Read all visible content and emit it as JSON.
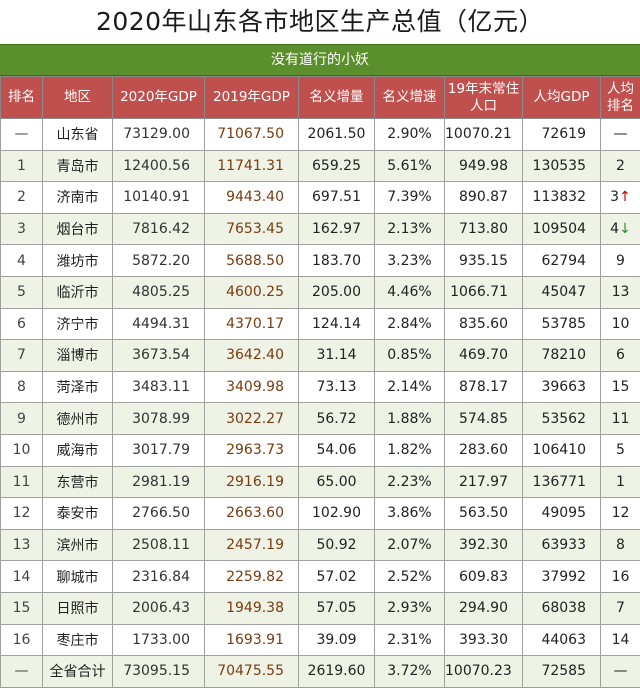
{
  "title": "2020年山东各市地区生产总值（亿元）",
  "subtitle": "没有道行的小妖",
  "headers": [
    "排名",
    "地区",
    "2020年GDP",
    "2019年GDP",
    "名义增量",
    "名义增速",
    "19年末常住人口",
    "人均GDP",
    "人均排名"
  ],
  "rows": [
    {
      "rank": "—",
      "region": "山东省",
      "gdp2020": "73129.00",
      "gdp2019": "71067.50",
      "inc": "2061.50",
      "rate": "2.90%",
      "pop": "10070.21",
      "per": "72619",
      "perRank": "—",
      "arrow": ""
    },
    {
      "rank": "1",
      "region": "青岛市",
      "gdp2020": "12400.56",
      "gdp2019": "11741.31",
      "inc": "659.25",
      "rate": "5.61%",
      "pop": "949.98",
      "per": "130535",
      "perRank": "2",
      "arrow": ""
    },
    {
      "rank": "2",
      "region": "济南市",
      "gdp2020": "10140.91",
      "gdp2019": "9443.40",
      "inc": "697.51",
      "rate": "7.39%",
      "pop": "890.87",
      "per": "113832",
      "perRank": "3",
      "arrow": "↑"
    },
    {
      "rank": "3",
      "region": "烟台市",
      "gdp2020": "7816.42",
      "gdp2019": "7653.45",
      "inc": "162.97",
      "rate": "2.13%",
      "pop": "713.80",
      "per": "109504",
      "perRank": "4",
      "arrow": "↓"
    },
    {
      "rank": "4",
      "region": "潍坊市",
      "gdp2020": "5872.20",
      "gdp2019": "5688.50",
      "inc": "183.70",
      "rate": "3.23%",
      "pop": "935.15",
      "per": "62794",
      "perRank": "9",
      "arrow": ""
    },
    {
      "rank": "5",
      "region": "临沂市",
      "gdp2020": "4805.25",
      "gdp2019": "4600.25",
      "inc": "205.00",
      "rate": "4.46%",
      "pop": "1066.71",
      "per": "45047",
      "perRank": "13",
      "arrow": ""
    },
    {
      "rank": "6",
      "region": "济宁市",
      "gdp2020": "4494.31",
      "gdp2019": "4370.17",
      "inc": "124.14",
      "rate": "2.84%",
      "pop": "835.60",
      "per": "53785",
      "perRank": "10",
      "arrow": ""
    },
    {
      "rank": "7",
      "region": "淄博市",
      "gdp2020": "3673.54",
      "gdp2019": "3642.40",
      "inc": "31.14",
      "rate": "0.85%",
      "pop": "469.70",
      "per": "78210",
      "perRank": "6",
      "arrow": ""
    },
    {
      "rank": "8",
      "region": "菏泽市",
      "gdp2020": "3483.11",
      "gdp2019": "3409.98",
      "inc": "73.13",
      "rate": "2.14%",
      "pop": "878.17",
      "per": "39663",
      "perRank": "15",
      "arrow": ""
    },
    {
      "rank": "9",
      "region": "德州市",
      "gdp2020": "3078.99",
      "gdp2019": "3022.27",
      "inc": "56.72",
      "rate": "1.88%",
      "pop": "574.85",
      "per": "53562",
      "perRank": "11",
      "arrow": ""
    },
    {
      "rank": "10",
      "region": "威海市",
      "gdp2020": "3017.79",
      "gdp2019": "2963.73",
      "inc": "54.06",
      "rate": "1.82%",
      "pop": "283.60",
      "per": "106410",
      "perRank": "5",
      "arrow": ""
    },
    {
      "rank": "11",
      "region": "东营市",
      "gdp2020": "2981.19",
      "gdp2019": "2916.19",
      "inc": "65.00",
      "rate": "2.23%",
      "pop": "217.97",
      "per": "136771",
      "perRank": "1",
      "arrow": ""
    },
    {
      "rank": "12",
      "region": "泰安市",
      "gdp2020": "2766.50",
      "gdp2019": "2663.60",
      "inc": "102.90",
      "rate": "3.86%",
      "pop": "563.50",
      "per": "49095",
      "perRank": "12",
      "arrow": ""
    },
    {
      "rank": "13",
      "region": "滨州市",
      "gdp2020": "2508.11",
      "gdp2019": "2457.19",
      "inc": "50.92",
      "rate": "2.07%",
      "pop": "392.30",
      "per": "63933",
      "perRank": "8",
      "arrow": ""
    },
    {
      "rank": "14",
      "region": "聊城市",
      "gdp2020": "2316.84",
      "gdp2019": "2259.82",
      "inc": "57.02",
      "rate": "2.52%",
      "pop": "609.83",
      "per": "37992",
      "perRank": "16",
      "arrow": ""
    },
    {
      "rank": "15",
      "region": "日照市",
      "gdp2020": "2006.43",
      "gdp2019": "1949.38",
      "inc": "57.05",
      "rate": "2.93%",
      "pop": "294.90",
      "per": "68038",
      "perRank": "7",
      "arrow": ""
    },
    {
      "rank": "16",
      "region": "枣庄市",
      "gdp2020": "1733.00",
      "gdp2019": "1693.91",
      "inc": "39.09",
      "rate": "2.31%",
      "pop": "393.30",
      "per": "44063",
      "perRank": "14",
      "arrow": ""
    },
    {
      "rank": "—",
      "region": "全省合计",
      "gdp2020": "73095.15",
      "gdp2019": "70475.55",
      "inc": "2619.60",
      "rate": "3.72%",
      "pop": "10070.23",
      "per": "72585",
      "perRank": "—",
      "arrow": ""
    }
  ],
  "colors": {
    "header": "#c0504d",
    "subtitle": "#5b8f2c",
    "up": "#c00000",
    "down": "#2e8b2e"
  }
}
